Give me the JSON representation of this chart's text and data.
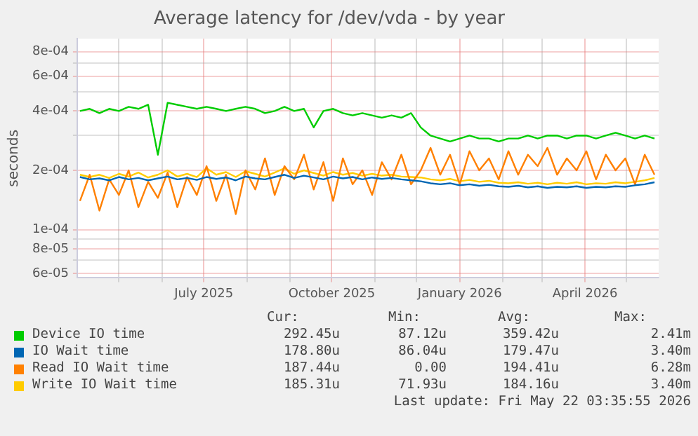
{
  "chart_data": {
    "type": "line",
    "title": "Average latency for /dev/vda - by year",
    "ylabel": "seconds",
    "log": "y",
    "grid": true,
    "legend": "bottom",
    "marker": "none",
    "line_style": "solid",
    "x": [
      "2025-04-03",
      "2025-04-10",
      "2025-04-17",
      "2025-04-24",
      "2025-05-01",
      "2025-05-08",
      "2025-05-15",
      "2025-05-22",
      "2025-05-29",
      "2025-06-05",
      "2025-06-12",
      "2025-06-19",
      "2025-06-26",
      "2025-07-03",
      "2025-07-10",
      "2025-07-17",
      "2025-07-24",
      "2025-07-31",
      "2025-08-07",
      "2025-08-14",
      "2025-08-21",
      "2025-08-28",
      "2025-09-04",
      "2025-09-11",
      "2025-09-18",
      "2025-09-25",
      "2025-10-02",
      "2025-10-09",
      "2025-10-16",
      "2025-10-23",
      "2025-10-30",
      "2025-11-06",
      "2025-11-13",
      "2025-11-20",
      "2025-11-27",
      "2025-12-04",
      "2025-12-11",
      "2025-12-18",
      "2025-12-25",
      "2026-01-01",
      "2026-01-08",
      "2026-01-15",
      "2026-01-22",
      "2026-01-29",
      "2026-02-05",
      "2026-02-12",
      "2026-02-19",
      "2026-02-26",
      "2026-03-05",
      "2026-03-12",
      "2026-03-19",
      "2026-03-26",
      "2026-04-02",
      "2026-04-09",
      "2026-04-16",
      "2026-04-23",
      "2026-04-30",
      "2026-05-07",
      "2026-05-14",
      "2026-05-21"
    ],
    "xlim": [
      "2025-04-01",
      "2026-05-24"
    ],
    "xticks": [
      {
        "value": "2025-05-01",
        "label": null
      },
      {
        "value": "2025-06-01",
        "label": null
      },
      {
        "value": "2025-07-01",
        "label": "July 2025"
      },
      {
        "value": "2025-08-01",
        "label": null
      },
      {
        "value": "2025-09-01",
        "label": null
      },
      {
        "value": "2025-10-01",
        "label": "October 2025"
      },
      {
        "value": "2025-11-01",
        "label": null
      },
      {
        "value": "2025-12-01",
        "label": null
      },
      {
        "value": "2026-01-01",
        "label": "January 2026"
      },
      {
        "value": "2026-02-01",
        "label": null
      },
      {
        "value": "2026-03-01",
        "label": null
      },
      {
        "value": "2026-04-01",
        "label": "April 2026"
      },
      {
        "value": "2026-05-01",
        "label": null
      }
    ],
    "ylim": [
      5.7e-05,
      0.00093
    ],
    "yticks": [
      {
        "value": 6e-05,
        "label": "6e-05"
      },
      {
        "value": 7e-05,
        "label": null
      },
      {
        "value": 8e-05,
        "label": "8e-05"
      },
      {
        "value": 9e-05,
        "label": null
      },
      {
        "value": 0.0001,
        "label": "1e-04"
      },
      {
        "value": 0.0002,
        "label": "2e-04"
      },
      {
        "value": 0.0003,
        "label": null
      },
      {
        "value": 0.0004,
        "label": "4e-04"
      },
      {
        "value": 0.0005,
        "label": null
      },
      {
        "value": 0.0006,
        "label": "6e-04"
      },
      {
        "value": 0.0007,
        "label": null
      },
      {
        "value": 0.0008,
        "label": "8e-04"
      }
    ],
    "series": [
      {
        "name": "Device IO time",
        "color": "#00cc00",
        "values": [
          0.0004,
          0.00041,
          0.00039,
          0.00041,
          0.0004,
          0.00042,
          0.00041,
          0.00043,
          0.00024,
          0.00044,
          0.00043,
          0.00042,
          0.00041,
          0.00042,
          0.00041,
          0.0004,
          0.00041,
          0.00042,
          0.00041,
          0.00039,
          0.0004,
          0.00042,
          0.0004,
          0.00041,
          0.00033,
          0.0004,
          0.00041,
          0.00039,
          0.00038,
          0.00039,
          0.00038,
          0.00037,
          0.00038,
          0.00037,
          0.00039,
          0.00033,
          0.0003,
          0.00029,
          0.00028,
          0.00029,
          0.0003,
          0.00029,
          0.00029,
          0.00028,
          0.00029,
          0.00029,
          0.0003,
          0.00029,
          0.0003,
          0.0003,
          0.00029,
          0.0003,
          0.0003,
          0.00029,
          0.0003,
          0.00031,
          0.0003,
          0.00029,
          0.0003,
          0.00029
        ]
      },
      {
        "name": "IO Wait time",
        "color": "#0066b3",
        "values": [
          0.000185,
          0.00018,
          0.000182,
          0.000178,
          0.000185,
          0.00018,
          0.000183,
          0.000178,
          0.000182,
          0.000186,
          0.00018,
          0.000183,
          0.000179,
          0.000185,
          0.000181,
          0.000184,
          0.000178,
          0.000186,
          0.000182,
          0.00018,
          0.000185,
          0.00019,
          0.000183,
          0.000188,
          0.000184,
          0.00018,
          0.000186,
          0.000182,
          0.000185,
          0.00018,
          0.000184,
          0.000181,
          0.000183,
          0.00018,
          0.000178,
          0.000176,
          0.000172,
          0.00017,
          0.000172,
          0.000168,
          0.00017,
          0.000167,
          0.000169,
          0.000166,
          0.000165,
          0.000167,
          0.000164,
          0.000166,
          0.000163,
          0.000165,
          0.000164,
          0.000166,
          0.000163,
          0.000165,
          0.000164,
          0.000166,
          0.000165,
          0.000168,
          0.00017,
          0.000174
        ]
      },
      {
        "name": "Read IO Wait time",
        "color": "#ff8000",
        "values": [
          0.00014,
          0.00019,
          0.000125,
          0.00018,
          0.00015,
          0.0002,
          0.00013,
          0.000175,
          0.000145,
          0.000195,
          0.00013,
          0.000185,
          0.00015,
          0.00021,
          0.00014,
          0.00019,
          0.00012,
          0.0002,
          0.00016,
          0.00023,
          0.00015,
          0.00021,
          0.00018,
          0.00024,
          0.00016,
          0.00022,
          0.00014,
          0.00023,
          0.00017,
          0.0002,
          0.00015,
          0.00022,
          0.00018,
          0.00024,
          0.00017,
          0.0002,
          0.00026,
          0.00019,
          0.00024,
          0.00017,
          0.00025,
          0.0002,
          0.00023,
          0.00018,
          0.00025,
          0.00019,
          0.00024,
          0.00021,
          0.00026,
          0.00019,
          0.00023,
          0.0002,
          0.00025,
          0.00018,
          0.00024,
          0.0002,
          0.00023,
          0.00017,
          0.00024,
          0.00019
        ]
      },
      {
        "name": "Write IO Wait time",
        "color": "#ffcc00",
        "values": [
          0.00019,
          0.000185,
          0.00019,
          0.000183,
          0.000192,
          0.000186,
          0.000195,
          0.000184,
          0.00019,
          0.0002,
          0.000186,
          0.000192,
          0.000185,
          0.000205,
          0.00019,
          0.000196,
          0.000185,
          0.000198,
          0.000192,
          0.000186,
          0.000195,
          0.000205,
          0.000192,
          0.0002,
          0.000194,
          0.000188,
          0.000196,
          0.00019,
          0.000194,
          0.000188,
          0.000192,
          0.000188,
          0.00019,
          0.000186,
          0.000185,
          0.000184,
          0.00018,
          0.000178,
          0.000181,
          0.000176,
          0.000179,
          0.000175,
          0.000177,
          0.000173,
          0.000172,
          0.000174,
          0.000171,
          0.000173,
          0.00017,
          0.000173,
          0.000171,
          0.000174,
          0.00017,
          0.000172,
          0.000171,
          0.000174,
          0.000172,
          0.000175,
          0.000178,
          0.000183
        ]
      }
    ],
    "annotations": [
      "Cur:",
      "Min:",
      "Avg:",
      "Max:",
      "292.45u",
      "87.12u",
      "359.42u",
      "2.41m",
      "178.80u",
      "86.04u",
      "179.47u",
      "3.40m",
      "187.44u",
      "0.00",
      "194.41u",
      "6.28m",
      "185.31u",
      "71.93u",
      "184.16u",
      "3.40m",
      "Last update: Fri May 22 03:35:55 2026"
    ]
  }
}
